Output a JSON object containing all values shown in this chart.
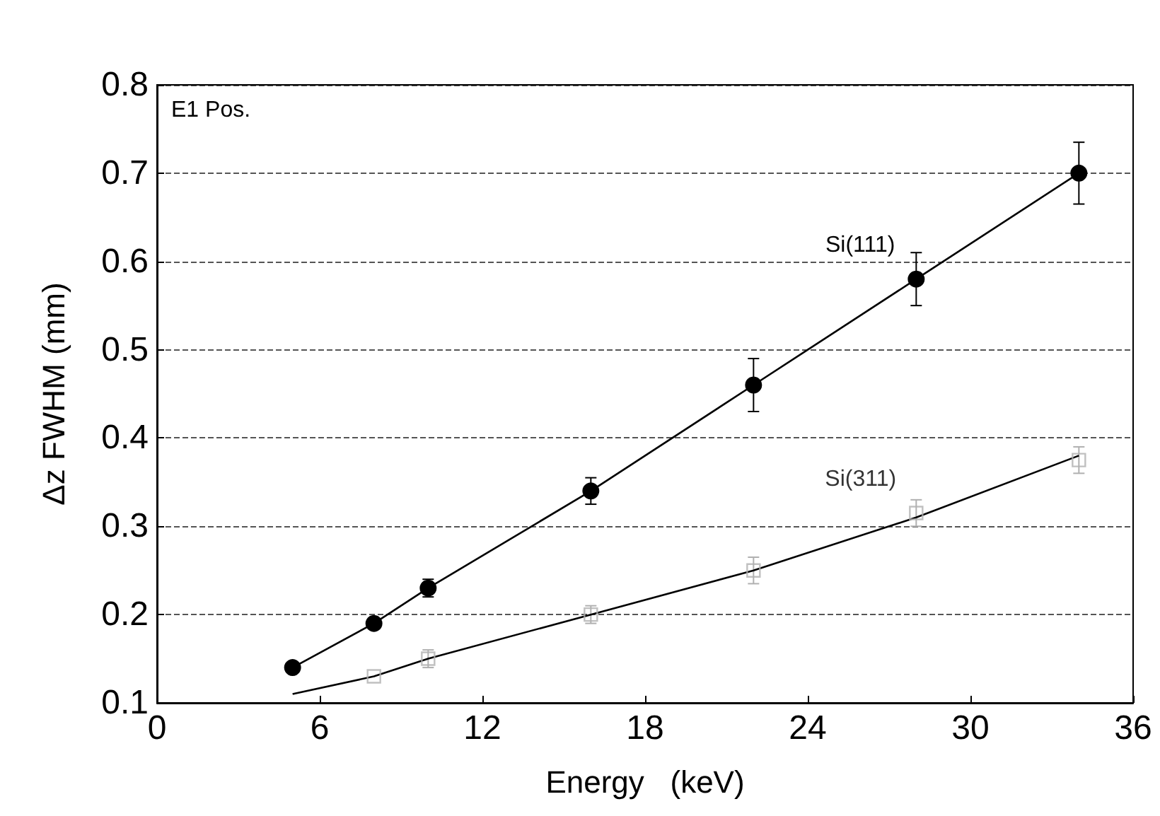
{
  "chart_data": {
    "type": "line",
    "xlabel": "Energy   (keV)",
    "ylabel": "Δz FWHM (mm)",
    "annotations": [
      "E1 Pos."
    ],
    "xlim": [
      0,
      36
    ],
    "xticks": [
      0,
      6,
      12,
      18,
      24,
      30,
      36
    ],
    "ylim": [
      0.1,
      0.8
    ],
    "yticks": [
      0.1,
      0.2,
      0.3,
      0.4,
      0.5,
      0.6,
      0.7,
      0.8
    ],
    "grid": "y",
    "series": [
      {
        "name": "Si(111)",
        "color": "#000000",
        "marker": "circle",
        "x": [
          5,
          8,
          10,
          16,
          22,
          28,
          34
        ],
        "values": [
          0.14,
          0.19,
          0.23,
          0.34,
          0.46,
          0.58,
          0.7
        ],
        "errors": [
          null,
          null,
          0.01,
          0.015,
          0.03,
          0.03,
          0.035
        ]
      },
      {
        "name": "Si(311)",
        "type": "scatter",
        "color": "#b0b0b0",
        "marker": "square",
        "x": [
          8,
          10,
          16,
          22,
          28,
          34
        ],
        "values": [
          0.13,
          0.15,
          0.2,
          0.25,
          0.315,
          0.375
        ],
        "errors": [
          null,
          0.01,
          0.01,
          0.015,
          0.015,
          0.015
        ]
      },
      {
        "type": "line",
        "color": "#000000",
        "marker": "none",
        "x": [
          5,
          8,
          10,
          16,
          22,
          28,
          34
        ],
        "values": [
          0.11,
          0.13,
          0.15,
          0.2,
          0.25,
          0.31,
          0.38
        ]
      }
    ]
  }
}
